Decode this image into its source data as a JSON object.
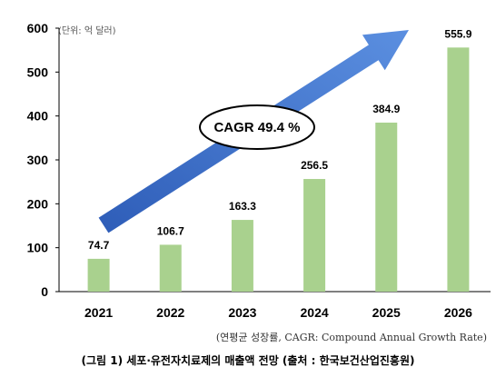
{
  "chart_data": {
    "type": "bar",
    "categories": [
      "2021",
      "2022",
      "2023",
      "2024",
      "2025",
      "2026"
    ],
    "values": [
      74.7,
      106.7,
      163.3,
      256.5,
      384.9,
      555.9
    ],
    "value_labels": [
      "74.7",
      "106.7",
      "163.3",
      "256.5",
      "384.9",
      "555.9"
    ],
    "ylim": [
      0,
      600
    ],
    "yticks": [
      0,
      100,
      200,
      300,
      400,
      500,
      600
    ],
    "unit_label": "(단위: 억 달러)",
    "annotation": "CAGR 49.4 %",
    "grid": false,
    "colors": {
      "bar": "#a9d18e",
      "arrow": "#4472c4"
    }
  },
  "footnote": "(연평균 성장률, CAGR: Compound Annual Growth Rate)",
  "caption": "(그림 1) 세포·유전자치료제의 매출액 전망 (출처 : 한국보건산업진흥원)"
}
